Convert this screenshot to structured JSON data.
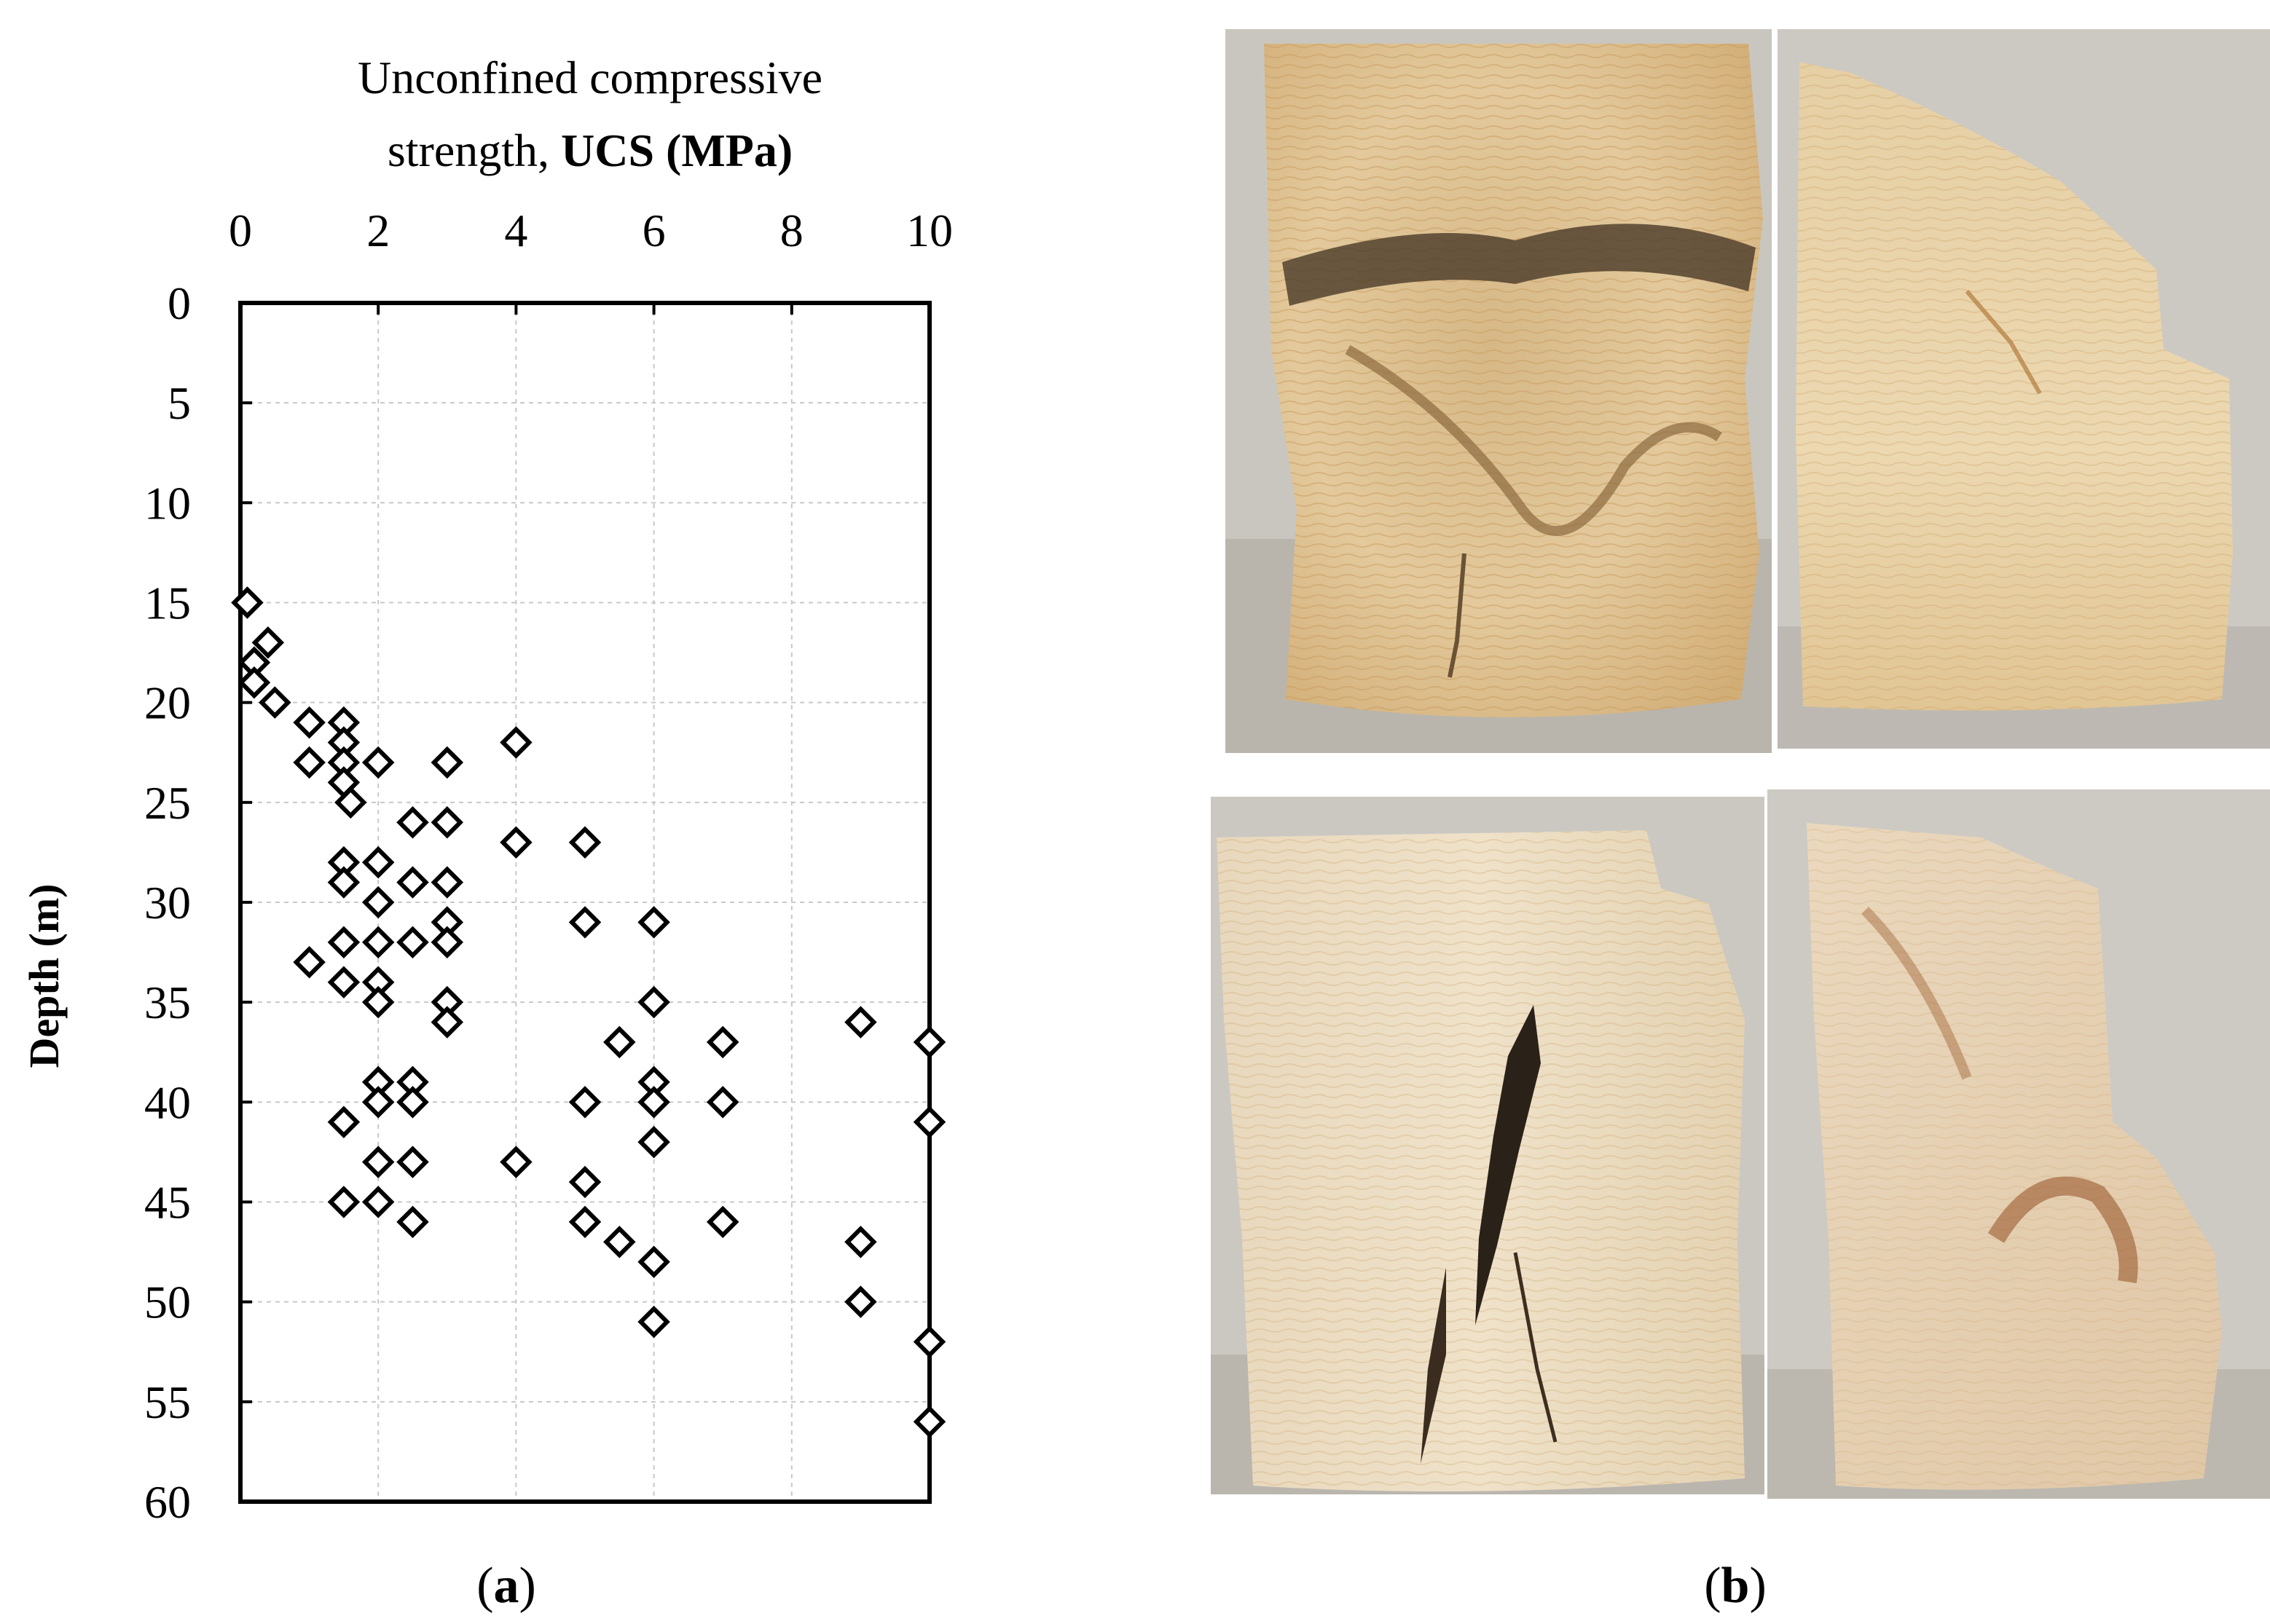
{
  "panel_a_label": "a",
  "panel_b_label": "b",
  "chart_data": {
    "type": "scatter",
    "title_line1": "Unconfined compressive",
    "title_line2_plain": "strength, ",
    "title_line2_bold": "UCS (MPa)",
    "xlabel": "Unconfined compressive strength, UCS (MPa)",
    "ylabel": "Depth  (m)",
    "x_axis_position": "top",
    "y_axis_inverted": true,
    "xlim": [
      0,
      10
    ],
    "ylim": [
      0,
      60
    ],
    "xticks": [
      0,
      2,
      4,
      6,
      8,
      10
    ],
    "yticks": [
      0,
      5,
      10,
      15,
      20,
      25,
      30,
      35,
      40,
      45,
      50,
      55,
      60
    ],
    "grid": true,
    "marker": "open-diamond",
    "points": [
      {
        "x": 0.1,
        "y": 15
      },
      {
        "x": 0.4,
        "y": 17
      },
      {
        "x": 0.2,
        "y": 18
      },
      {
        "x": 0.2,
        "y": 19
      },
      {
        "x": 0.5,
        "y": 20
      },
      {
        "x": 1.0,
        "y": 21
      },
      {
        "x": 1.5,
        "y": 21
      },
      {
        "x": 4.0,
        "y": 22
      },
      {
        "x": 1.5,
        "y": 22
      },
      {
        "x": 1.0,
        "y": 23
      },
      {
        "x": 1.5,
        "y": 23
      },
      {
        "x": 2.0,
        "y": 23
      },
      {
        "x": 3.0,
        "y": 23
      },
      {
        "x": 1.5,
        "y": 24
      },
      {
        "x": 1.6,
        "y": 25
      },
      {
        "x": 2.5,
        "y": 26
      },
      {
        "x": 3.0,
        "y": 26
      },
      {
        "x": 4.0,
        "y": 27
      },
      {
        "x": 5.0,
        "y": 27
      },
      {
        "x": 1.5,
        "y": 28
      },
      {
        "x": 2.0,
        "y": 28
      },
      {
        "x": 1.5,
        "y": 29
      },
      {
        "x": 2.5,
        "y": 29
      },
      {
        "x": 3.0,
        "y": 29
      },
      {
        "x": 2.0,
        "y": 30
      },
      {
        "x": 3.0,
        "y": 31
      },
      {
        "x": 5.0,
        "y": 31
      },
      {
        "x": 6.0,
        "y": 31
      },
      {
        "x": 1.5,
        "y": 32
      },
      {
        "x": 2.0,
        "y": 32
      },
      {
        "x": 2.5,
        "y": 32
      },
      {
        "x": 3.0,
        "y": 32
      },
      {
        "x": 1.0,
        "y": 33
      },
      {
        "x": 1.5,
        "y": 34
      },
      {
        "x": 2.0,
        "y": 34
      },
      {
        "x": 2.0,
        "y": 35
      },
      {
        "x": 3.0,
        "y": 35
      },
      {
        "x": 6.0,
        "y": 35
      },
      {
        "x": 3.0,
        "y": 36
      },
      {
        "x": 9.0,
        "y": 36
      },
      {
        "x": 5.5,
        "y": 37
      },
      {
        "x": 7.0,
        "y": 37
      },
      {
        "x": 10.0,
        "y": 37
      },
      {
        "x": 2.0,
        "y": 39
      },
      {
        "x": 2.5,
        "y": 39
      },
      {
        "x": 6.0,
        "y": 39
      },
      {
        "x": 2.0,
        "y": 40
      },
      {
        "x": 2.5,
        "y": 40
      },
      {
        "x": 5.0,
        "y": 40
      },
      {
        "x": 6.0,
        "y": 40
      },
      {
        "x": 7.0,
        "y": 40
      },
      {
        "x": 1.5,
        "y": 41
      },
      {
        "x": 10.0,
        "y": 41
      },
      {
        "x": 6.0,
        "y": 42
      },
      {
        "x": 2.0,
        "y": 43
      },
      {
        "x": 2.5,
        "y": 43
      },
      {
        "x": 4.0,
        "y": 43
      },
      {
        "x": 5.0,
        "y": 44
      },
      {
        "x": 1.5,
        "y": 45
      },
      {
        "x": 2.0,
        "y": 45
      },
      {
        "x": 2.5,
        "y": 46
      },
      {
        "x": 5.0,
        "y": 46
      },
      {
        "x": 7.0,
        "y": 46
      },
      {
        "x": 5.5,
        "y": 47
      },
      {
        "x": 9.0,
        "y": 47
      },
      {
        "x": 6.0,
        "y": 48
      },
      {
        "x": 9.0,
        "y": 50
      },
      {
        "x": 6.0,
        "y": 51
      },
      {
        "x": 10.0,
        "y": 52
      },
      {
        "x": 10.0,
        "y": 56
      }
    ]
  }
}
